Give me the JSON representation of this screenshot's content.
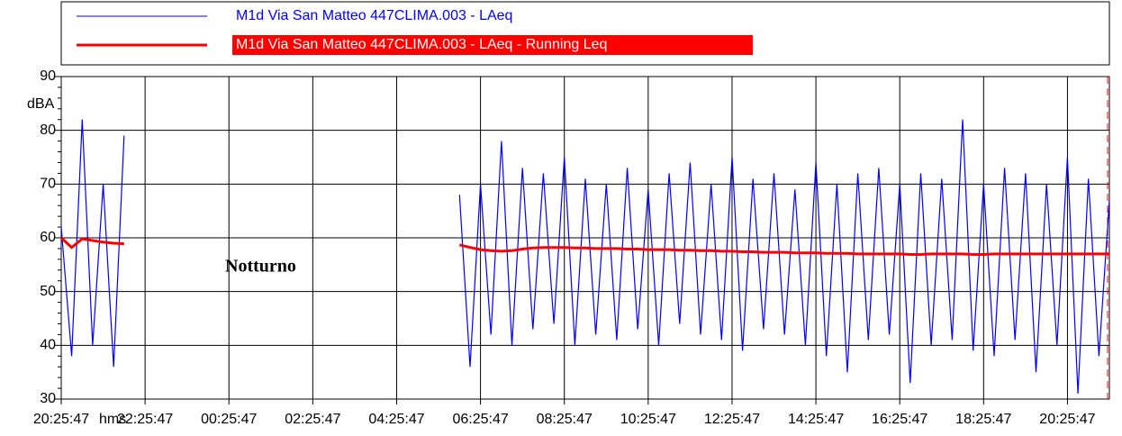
{
  "chart_data": {
    "type": "line",
    "y_label": "dBA",
    "x_label": "hms",
    "annotation": "Notturno",
    "x": [
      0,
      0.25,
      0.5,
      0.75,
      1,
      1.25,
      1.5,
      5.5,
      9.5,
      9.75,
      10,
      10.25,
      10.5,
      10.75,
      11,
      11.25,
      11.5,
      11.75,
      12,
      12.25,
      12.5,
      12.75,
      13,
      13.25,
      13.5,
      13.75,
      14,
      14.25,
      14.5,
      14.75,
      15,
      15.25,
      15.5,
      15.75,
      16,
      16.25,
      16.5,
      16.75,
      17,
      17.25,
      17.5,
      17.75,
      18,
      18.25,
      18.5,
      18.75,
      19,
      19.25,
      19.5,
      19.75,
      20,
      20.25,
      20.5,
      20.75,
      21,
      21.25,
      21.5,
      21.75,
      22,
      22.25,
      22.5,
      22.75,
      23,
      23.25,
      23.5,
      23.75,
      24,
      24.25,
      24.5,
      24.75,
      25
    ],
    "series": [
      {
        "name": "M1d Via San Matteo 447CLIMA.003 - LAeq",
        "color": "#0000ff",
        "values": [
          62,
          38,
          82,
          40,
          70,
          36,
          79,
          null,
          68,
          36,
          70,
          42,
          78,
          40,
          73,
          43,
          72,
          44,
          75,
          40,
          71,
          42,
          70,
          41,
          73,
          43,
          69,
          40,
          72,
          44,
          74,
          42,
          70,
          41,
          75,
          39,
          71,
          43,
          72,
          42,
          69,
          40,
          74,
          38,
          70,
          35,
          72,
          41,
          73,
          42,
          70,
          33,
          72,
          40,
          71,
          41,
          82,
          39,
          70,
          38,
          73,
          41,
          72,
          35,
          70,
          40,
          75,
          31,
          71,
          38,
          67
        ]
      },
      {
        "name": "M1d Via San Matteo 447CLIMA.003 - LAeq - Running Leq",
        "color": "#ff0000",
        "values": [
          60,
          58.2,
          59.8,
          59.5,
          59.2,
          59,
          58.9,
          null,
          58.7,
          58.2,
          57.8,
          57.6,
          57.5,
          57.6,
          57.9,
          58.1,
          58.2,
          58.2,
          58.2,
          58.1,
          58.1,
          58,
          58,
          58,
          57.9,
          57.9,
          57.8,
          57.8,
          57.8,
          57.7,
          57.7,
          57.6,
          57.6,
          57.5,
          57.5,
          57.4,
          57.4,
          57.3,
          57.3,
          57.3,
          57.2,
          57.2,
          57.2,
          57.1,
          57.1,
          57.1,
          57,
          57,
          57,
          57,
          57,
          56.9,
          56.9,
          57,
          57,
          57,
          57,
          56.9,
          56.9,
          57,
          57,
          57,
          57,
          57,
          57,
          57,
          57,
          57,
          57,
          57,
          57
        ]
      }
    ],
    "xlim": [
      0,
      25
    ],
    "xticks": [
      {
        "value": 0,
        "label": "20:25:47"
      },
      {
        "value": 2,
        "label": "22:25:47"
      },
      {
        "value": 4,
        "label": "00:25:47"
      },
      {
        "value": 6,
        "label": "02:25:47"
      },
      {
        "value": 8,
        "label": "04:25:47"
      },
      {
        "value": 10,
        "label": "06:25:47"
      },
      {
        "value": 12,
        "label": "08:25:47"
      },
      {
        "value": 14,
        "label": "10:25:47"
      },
      {
        "value": 16,
        "label": "12:25:47"
      },
      {
        "value": 18,
        "label": "14:25:47"
      },
      {
        "value": 20,
        "label": "16:25:47"
      },
      {
        "value": 22,
        "label": "18:25:47"
      },
      {
        "value": 24,
        "label": "20:25:47"
      }
    ],
    "ylim": [
      30,
      90
    ],
    "yticks": [
      30,
      40,
      50,
      60,
      70,
      80,
      90
    ],
    "grid": true
  }
}
